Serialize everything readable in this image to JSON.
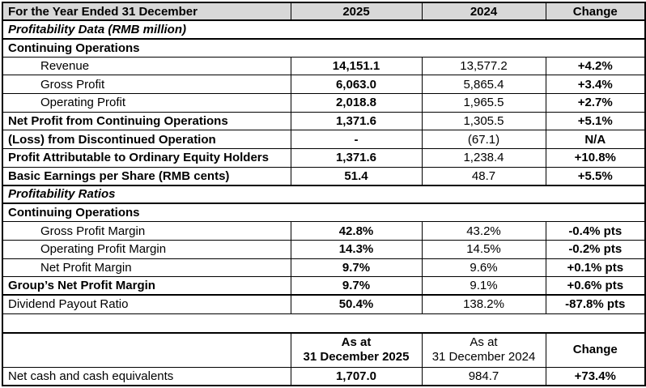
{
  "header": {
    "label": "For the Year Ended 31 December",
    "col_2025": "2025",
    "col_2024": "2024",
    "col_change": "Change"
  },
  "rows": [
    {
      "kind": "section",
      "style": "bold-italic",
      "label": "Profitability Data (RMB million)",
      "thick_bottom": true
    },
    {
      "kind": "section",
      "style": "bold",
      "label": "Continuing Operations"
    },
    {
      "kind": "data",
      "label": "Revenue",
      "indent": true,
      "v2025": "14,151.1",
      "v2024": "13,577.2",
      "change": "+4.2%"
    },
    {
      "kind": "data",
      "label": "Gross Profit",
      "indent": true,
      "v2025": "6,063.0",
      "v2024": "5,865.4",
      "change": "+3.4%"
    },
    {
      "kind": "data",
      "label": "Operating Profit",
      "indent": true,
      "v2025": "2,018.8",
      "v2024": "1,965.5",
      "change": "+2.7%"
    },
    {
      "kind": "data",
      "label": "Net Profit from Continuing Operations",
      "label_bold": true,
      "v2025": "1,371.6",
      "v2024": "1,305.5",
      "change": "+5.1%"
    },
    {
      "kind": "data",
      "label": "(Loss) from Discontinued Operation",
      "label_bold": true,
      "v2025": "-",
      "v2024": "(67.1)",
      "change": "N/A"
    },
    {
      "kind": "data",
      "label": "Profit Attributable to Ordinary Equity Holders",
      "label_bold": true,
      "v2025": "1,371.6",
      "v2024": "1,238.4",
      "change": "+10.8%"
    },
    {
      "kind": "data",
      "label": "Basic Earnings per Share (RMB cents)",
      "label_bold": true,
      "v2025": "51.4",
      "v2024": "48.7",
      "change": "+5.5%",
      "thick_bottom": true
    },
    {
      "kind": "section",
      "style": "bold-italic",
      "label": "Profitability Ratios",
      "thick_bottom": true
    },
    {
      "kind": "section",
      "style": "bold",
      "label": "Continuing Operations"
    },
    {
      "kind": "data",
      "label": "Gross Profit Margin",
      "indent": true,
      "v2025": "42.8%",
      "v2024": "43.2%",
      "change": "-0.4% pts"
    },
    {
      "kind": "data",
      "label": "Operating Profit Margin",
      "indent": true,
      "v2025": "14.3%",
      "v2024": "14.5%",
      "change": "-0.2% pts"
    },
    {
      "kind": "data",
      "label": "Net Profit Margin",
      "indent": true,
      "v2025": "9.7%",
      "v2024": "9.6%",
      "change": "+0.1% pts"
    },
    {
      "kind": "data",
      "label": "Group’s Net Profit Margin",
      "label_bold": true,
      "v2025": "9.7%",
      "v2024": "9.1%",
      "change": "+0.6% pts",
      "thick_bottom": true
    },
    {
      "kind": "data",
      "label": "Dividend Payout Ratio",
      "v2025": "50.4%",
      "v2024": "138.2%",
      "change": "-87.8% pts"
    },
    {
      "kind": "gap",
      "thick_bottom": true
    },
    {
      "kind": "subheader",
      "label": "",
      "v2025": "As at\n31 December 2025",
      "v2024": "As at\n31 December 2024",
      "change": "Change",
      "tall": true
    },
    {
      "kind": "data",
      "label": "Net cash and cash equivalents",
      "v2025": "1,707.0",
      "v2024": "984.7",
      "change": "+73.4%"
    }
  ],
  "colors": {
    "header_bg": "#d8d8d8",
    "border": "#000000",
    "text": "#000000"
  }
}
